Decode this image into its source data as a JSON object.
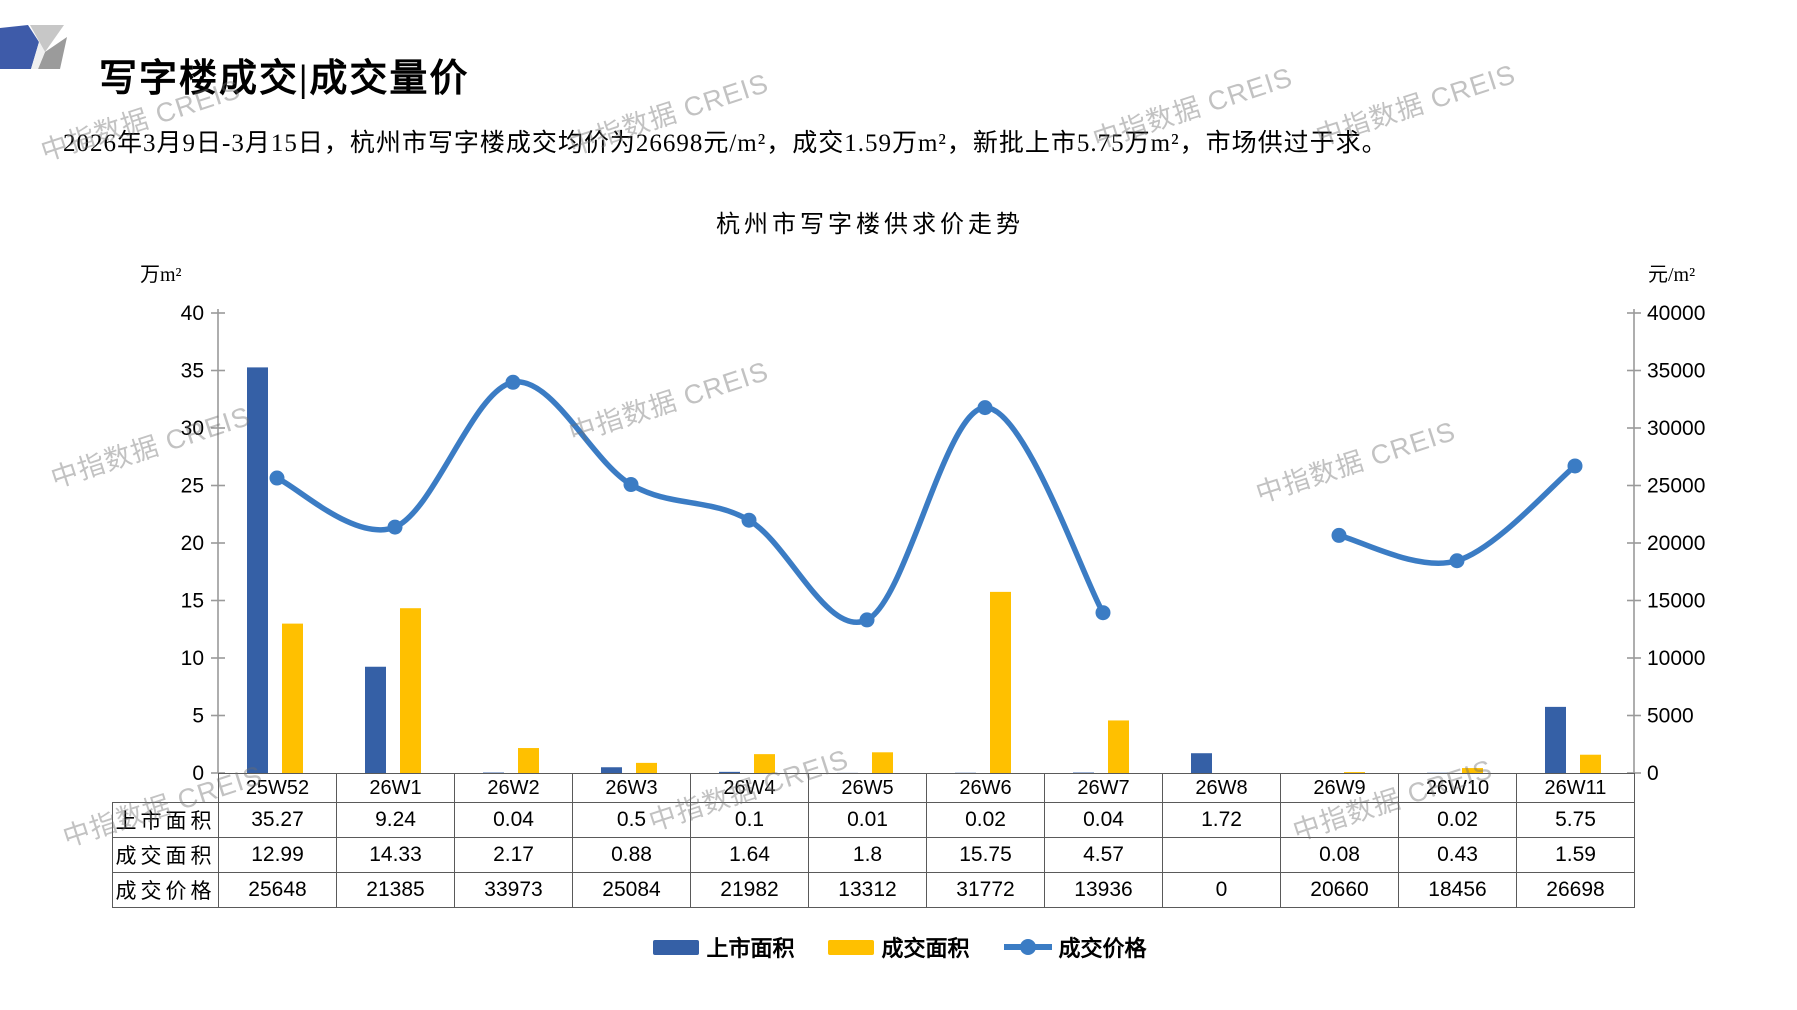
{
  "page": {
    "title": "写字楼成交|成交量价",
    "subtitle": "2026年3月9日-3月15日，杭州市写字楼成交均价为26698元/m²，成交1.59万m²，新批上市5.75万m²，市场供过于求。",
    "watermark": "中指数据 CREIS"
  },
  "chart_data": {
    "type": "bar+line",
    "title": "杭州市写字楼供求价走势",
    "categories": [
      "25W52",
      "26W1",
      "26W2",
      "26W3",
      "26W4",
      "26W5",
      "26W6",
      "26W7",
      "26W8",
      "26W9",
      "26W10",
      "26W11"
    ],
    "series": [
      {
        "name": "上市面积",
        "type": "bar",
        "axis": "left",
        "color": "#3560A6",
        "values": [
          35.27,
          9.24,
          0.04,
          0.5,
          0.1,
          0.01,
          0.02,
          0.04,
          1.72,
          null,
          0.02,
          5.75
        ]
      },
      {
        "name": "成交面积",
        "type": "bar",
        "axis": "left",
        "color": "#FFC000",
        "values": [
          12.99,
          14.33,
          2.17,
          0.88,
          1.64,
          1.8,
          15.75,
          4.57,
          null,
          0.08,
          0.43,
          1.59
        ]
      },
      {
        "name": "成交价格",
        "type": "line",
        "axis": "right",
        "color": "#3B7CC4",
        "values": [
          25648,
          21385,
          33973,
          25084,
          21982,
          13312,
          31772,
          13936,
          null,
          20660,
          18456,
          26698
        ]
      }
    ],
    "left_axis": {
      "label": "万m²",
      "min": 0,
      "max": 40,
      "step": 5
    },
    "right_axis": {
      "label": "元/m²",
      "min": 0,
      "max": 40000,
      "step": 5000
    },
    "legend_position": "bottom",
    "grid": false
  },
  "table": {
    "row_headers": [
      "上市面积",
      "成交面积",
      "成交价格"
    ],
    "columns": [
      "25W52",
      "26W1",
      "26W2",
      "26W3",
      "26W4",
      "26W5",
      "26W6",
      "26W7",
      "26W8",
      "26W9",
      "26W10",
      "26W11"
    ],
    "rows": [
      [
        "35.27",
        "9.24",
        "0.04",
        "0.5",
        "0.1",
        "0.01",
        "0.02",
        "0.04",
        "1.72",
        "",
        "0.02",
        "5.75"
      ],
      [
        "12.99",
        "14.33",
        "2.17",
        "0.88",
        "1.64",
        "1.8",
        "15.75",
        "4.57",
        "",
        "0.08",
        "0.43",
        "1.59"
      ],
      [
        "25648",
        "21385",
        "33973",
        "25084",
        "21982",
        "13312",
        "31772",
        "13936",
        "0",
        "20660",
        "18456",
        "26698"
      ]
    ]
  }
}
